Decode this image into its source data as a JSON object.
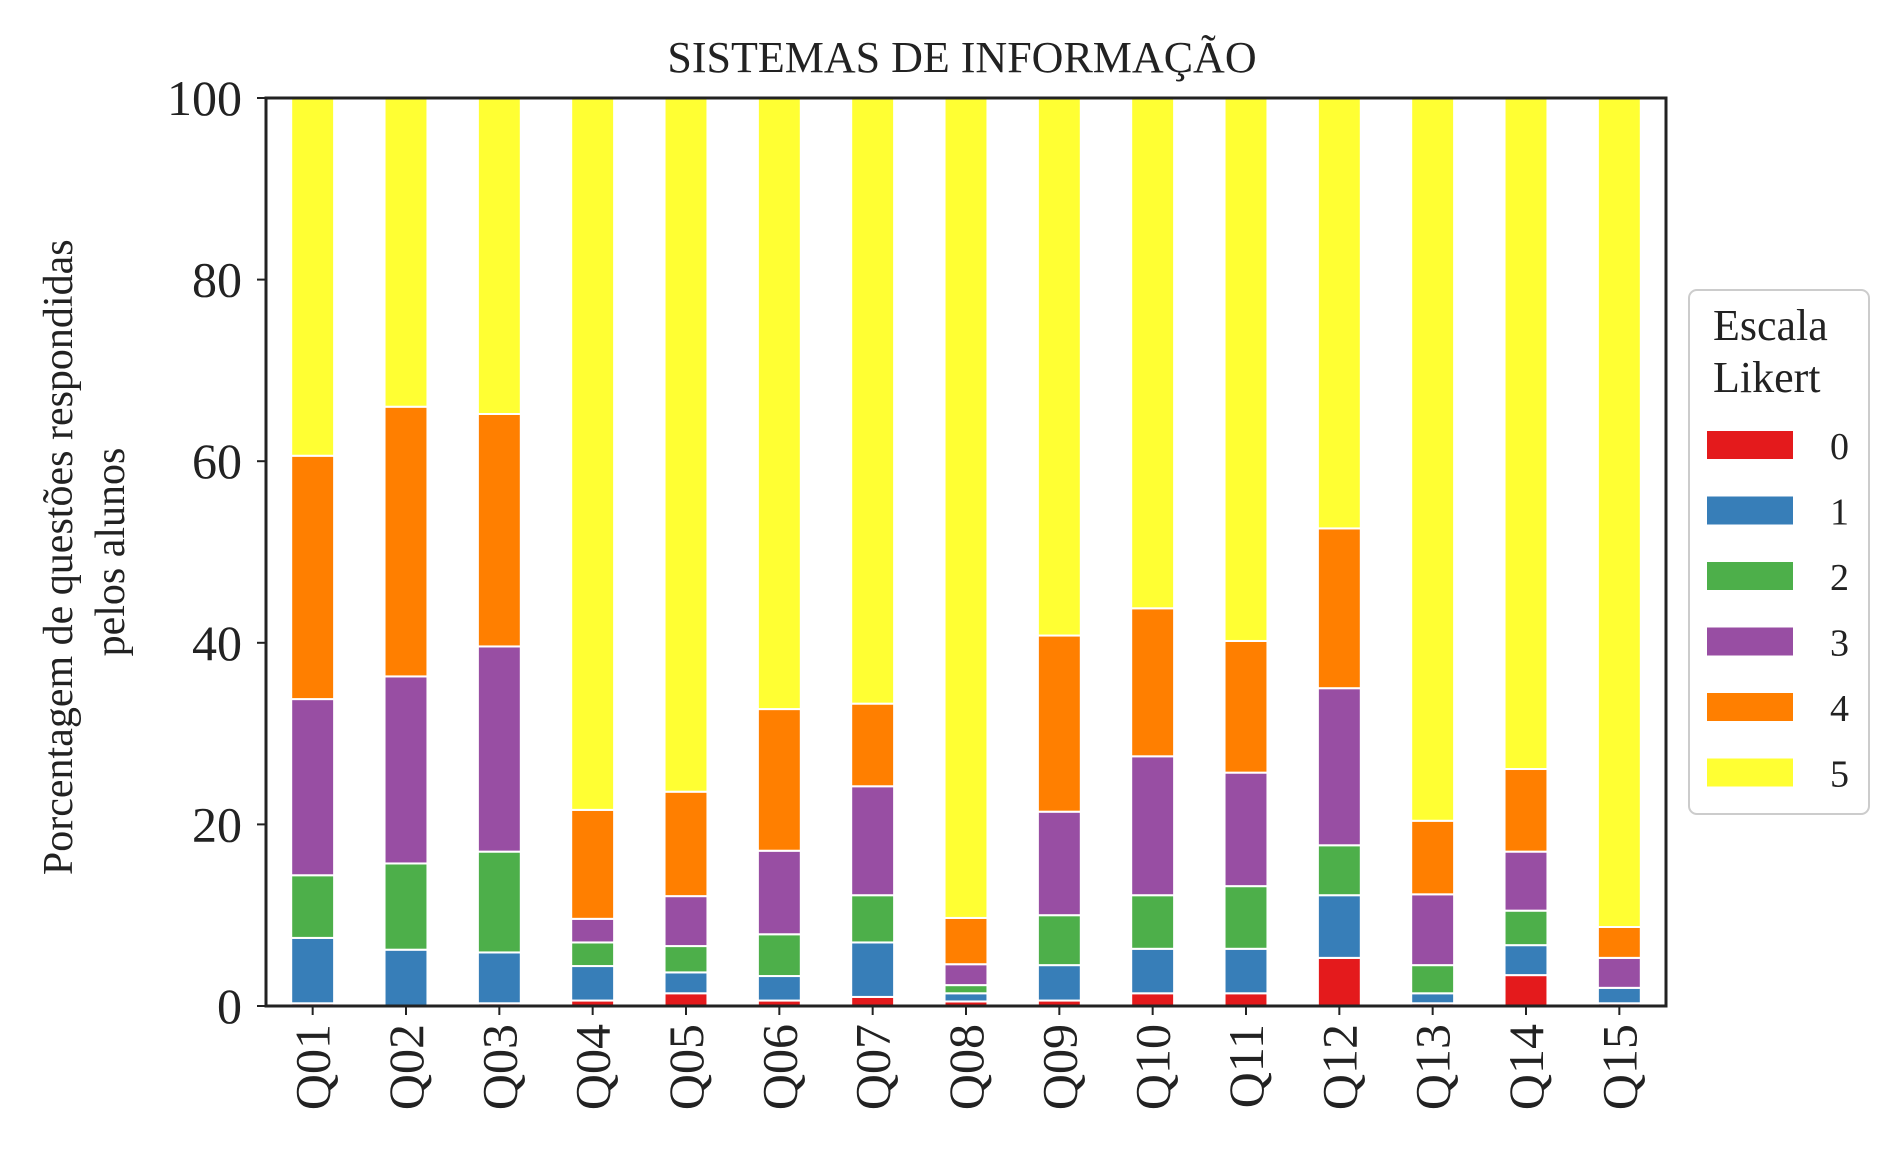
{
  "chart_data": {
    "type": "bar",
    "stacked": true,
    "title": "SISTEMAS DE INFORMAÇÃO",
    "xlabel": "",
    "ylabel_lines": [
      "Porcentagem de questões respondidas",
      "pelos alunos"
    ],
    "ylim": [
      0,
      100
    ],
    "yticks": [
      0,
      20,
      40,
      60,
      80,
      100
    ],
    "grid": false,
    "legend": {
      "title_lines": [
        "Escala",
        "Likert"
      ],
      "placement": "right-center"
    },
    "categories": [
      "Q01",
      "Q02",
      "Q03",
      "Q04",
      "Q05",
      "Q06",
      "Q07",
      "Q08",
      "Q09",
      "Q10",
      "Q11",
      "Q12",
      "Q13",
      "Q14",
      "Q15"
    ],
    "series": [
      {
        "name": "0",
        "color": "#e41a1c",
        "values": [
          0.3,
          0,
          0.3,
          0.6,
          1.4,
          0.6,
          1.0,
          0.5,
          0.6,
          1.4,
          1.4,
          5.3,
          0.3,
          3.4,
          0.3
        ]
      },
      {
        "name": "1",
        "color": "#377eb8",
        "values": [
          7.2,
          6.2,
          5.6,
          3.8,
          2.3,
          2.7,
          6.0,
          0.9,
          3.9,
          4.9,
          4.9,
          6.9,
          1.1,
          3.3,
          1.7
        ]
      },
      {
        "name": "2",
        "color": "#4daf4a",
        "values": [
          6.9,
          9.5,
          11.1,
          2.6,
          2.9,
          4.6,
          5.2,
          0.9,
          5.5,
          5.9,
          6.9,
          5.5,
          3.1,
          3.8,
          0
        ]
      },
      {
        "name": "3",
        "color": "#984ea3",
        "values": [
          19.4,
          20.6,
          22.6,
          2.6,
          5.5,
          9.2,
          12.0,
          2.3,
          11.4,
          15.3,
          12.5,
          17.3,
          7.8,
          6.5,
          3.3
        ]
      },
      {
        "name": "4",
        "color": "#ff7f00",
        "values": [
          26.8,
          29.7,
          25.6,
          12.0,
          11.5,
          15.6,
          9.1,
          5.1,
          19.4,
          16.3,
          14.5,
          17.6,
          8.1,
          9.1,
          3.4
        ]
      },
      {
        "name": "5",
        "color": "#ffff33",
        "values": [
          39.4,
          34.0,
          34.8,
          78.4,
          76.4,
          67.3,
          66.7,
          90.3,
          59.2,
          56.2,
          59.8,
          47.4,
          79.6,
          73.9,
          91.3
        ]
      }
    ]
  }
}
